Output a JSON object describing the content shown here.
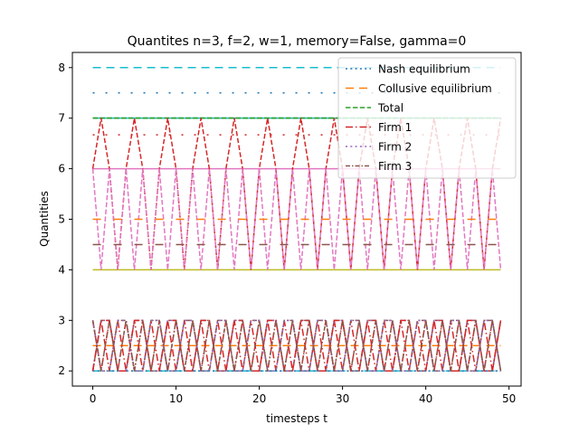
{
  "chart_data": {
    "type": "line",
    "title": "Quantites n=3, f=2, w=1, memory=False, gamma=0",
    "xlabel": "timesteps t",
    "ylabel": "Quantities",
    "xlim": [
      -2.45,
      51.45
    ],
    "ylim": [
      1.7,
      8.3
    ],
    "xticks": [
      0,
      10,
      20,
      30,
      40,
      50
    ],
    "yticks": [
      2,
      3,
      4,
      5,
      6,
      7,
      8
    ],
    "legend_position": "top-right",
    "series": [
      {
        "name": "Nash equilibrium",
        "color": "#1f77b4",
        "style": "dotted",
        "source": "constant",
        "values_by_group": {
          "firm": 2,
          "total": 6
        }
      },
      {
        "name": "Collusive equilibrium",
        "color": "#ff7f0e",
        "style": "dashed-long",
        "source": "constant",
        "values_by_group": {
          "firm": 1.5,
          "total": 4.5
        }
      },
      {
        "name": "Total",
        "color": "#2ca02c",
        "style": "dashed",
        "source": "group_total"
      },
      {
        "name": "Firm 1",
        "color": "#d62728",
        "style": "dashdot",
        "source": "group_firm",
        "firm_index": 0
      },
      {
        "name": "Firm 2",
        "color": "#9467bd",
        "style": "dotted",
        "source": "group_firm",
        "firm_index": 1
      },
      {
        "name": "Firm 3",
        "color": "#8c564b",
        "style": "dashdot-dense",
        "source": "group_firm",
        "firm_index": 2
      }
    ],
    "groups": [
      {
        "color_cycle_offset": 0,
        "firm_pattern": [
          [
            2,
            3,
            2
          ],
          [
            3,
            2,
            3
          ],
          [
            2,
            2,
            3
          ],
          [
            3,
            3,
            2
          ]
        ],
        "nash": {
          "firm": 2,
          "total": 6
        },
        "collusive": {
          "firm": 2.5,
          "total": 7.5
        }
      },
      {
        "color_cycle_offset": 6,
        "firm_pattern": [
          [
            3,
            2,
            3
          ],
          [
            2,
            3,
            2
          ],
          [
            3,
            3,
            2
          ],
          [
            2,
            2,
            3
          ]
        ],
        "nash": {
          "firm": 2,
          "total": 6
        },
        "collusive": {
          "firm": 1.67,
          "total": 5
        }
      },
      {
        "color_cycle_offset": 2,
        "firm_pattern": [
          [
            2,
            3,
            3
          ],
          [
            3,
            2,
            2
          ],
          [
            3,
            2,
            3
          ],
          [
            2,
            3,
            2
          ]
        ],
        "nash": {
          "firm": 2,
          "total": 6
        },
        "collusive": {
          "firm": 1.5,
          "total": 4.5
        }
      }
    ],
    "extra_constants": [
      {
        "value": 8,
        "color": "#17becf",
        "style": "dashed-long"
      },
      {
        "value": 7,
        "color": "#17becf",
        "style": "solid-long"
      },
      {
        "value": 7.5,
        "color": "#1f77b4",
        "style": "dotted-sparse"
      },
      {
        "value": 6.67,
        "color": "#d62728",
        "style": "dotted-sparse"
      },
      {
        "value": 6,
        "color": "#e377c2",
        "style": "solid"
      },
      {
        "value": 4,
        "color": "#bcbd22",
        "style": "solid"
      },
      {
        "value": 2,
        "color": "#17becf",
        "style": "dashed-long"
      }
    ],
    "t": {
      "start": 0,
      "end": 49
    }
  }
}
